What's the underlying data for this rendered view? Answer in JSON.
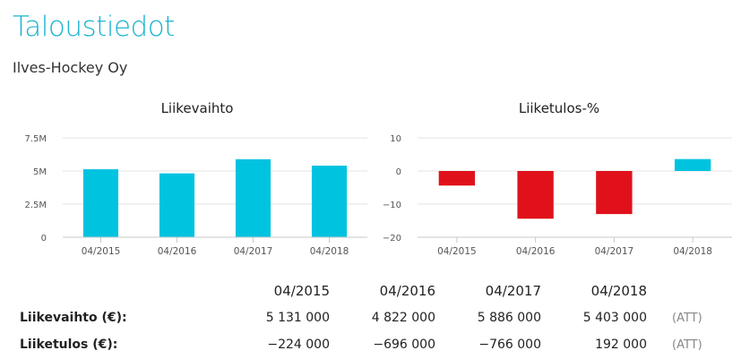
{
  "page": {
    "title": "Taloustiedot",
    "company": "Ilves-Hockey Oy"
  },
  "chart_data": [
    {
      "type": "bar",
      "title": "Liikevaihto",
      "categories": [
        "04/2015",
        "04/2016",
        "04/2017",
        "04/2018"
      ],
      "values": [
        5131000,
        4822000,
        5886000,
        5403000
      ],
      "yticks": [
        0,
        2500000,
        5000000,
        7500000
      ],
      "ytick_labels": [
        "0",
        "2.5M",
        "5M",
        "7.5M"
      ],
      "ylim": [
        0,
        7500000
      ],
      "grid": true,
      "colors": {
        "positive": "#00c3e0",
        "negative": "#e0111b"
      }
    },
    {
      "type": "bar",
      "title": "Liiketulos-%",
      "categories": [
        "04/2015",
        "04/2016",
        "04/2017",
        "04/2018"
      ],
      "values": [
        -4.4,
        -14.4,
        -13.0,
        3.6
      ],
      "yticks": [
        10,
        0,
        -10,
        -20
      ],
      "ytick_labels": [
        "10",
        "0",
        "−10",
        "−20"
      ],
      "ylim": [
        -20,
        10
      ],
      "grid": true,
      "colors": {
        "positive": "#00c3e0",
        "negative": "#e0111b"
      }
    }
  ],
  "table": {
    "years": [
      "04/2015",
      "04/2016",
      "04/2017",
      "04/2018"
    ],
    "rows": [
      {
        "label": "Liikevaihto (€):",
        "values": [
          "5 131 000",
          "4 822 000",
          "5 886 000",
          "5 403 000"
        ],
        "note": "(ATT)"
      },
      {
        "label": "Liiketulos (€):",
        "values": [
          "−224 000",
          "−696 000",
          "−766 000",
          "192 000"
        ],
        "note": "(ATT)"
      }
    ]
  }
}
